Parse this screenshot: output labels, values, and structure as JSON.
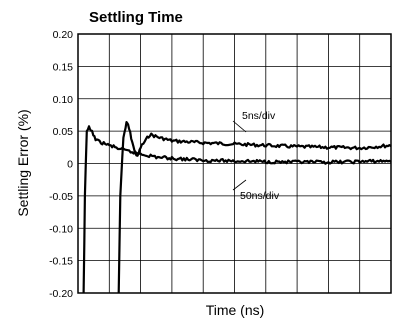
{
  "chart_data": {
    "type": "line",
    "title": "Settling Time",
    "xlabel": "Time (ns)",
    "ylabel": "Settling Error (%)",
    "ylim": [
      -0.2,
      0.2
    ],
    "ytick_labels": [
      "0.20",
      "0.15",
      "0.10",
      "0.05",
      "0",
      "-0.05",
      "-0.10",
      "-0.15",
      "-0.20"
    ],
    "x_divisions": 10,
    "grid": true,
    "annotations": [
      "5ns/div",
      "50ns/div"
    ],
    "series": [
      {
        "name": "5ns/div",
        "x": [
          1.3,
          1.35,
          1.45,
          1.55,
          1.6,
          1.7,
          1.8,
          1.9,
          2.0,
          2.3,
          2.6,
          3.0,
          4.0,
          5.0,
          6.0,
          7.0,
          8.0,
          9.0,
          10.0
        ],
        "y": [
          -0.2,
          -0.05,
          0.04,
          0.062,
          0.06,
          0.04,
          0.02,
          0.01,
          0.025,
          0.045,
          0.04,
          0.035,
          0.032,
          0.03,
          0.028,
          0.026,
          0.025,
          0.024,
          0.028
        ]
      },
      {
        "name": "50ns/div",
        "x": [
          0.18,
          0.22,
          0.28,
          0.35,
          0.45,
          0.6,
          1.0,
          1.5,
          2.0,
          2.5,
          3.0,
          4.0,
          5.0,
          6.0,
          7.0,
          8.0,
          9.0,
          10.0
        ],
        "y": [
          -0.2,
          -0.05,
          0.05,
          0.055,
          0.048,
          0.035,
          0.028,
          0.02,
          0.015,
          0.01,
          0.008,
          0.005,
          0.004,
          0.003,
          0.002,
          0.002,
          0.003,
          0.004
        ]
      }
    ]
  }
}
